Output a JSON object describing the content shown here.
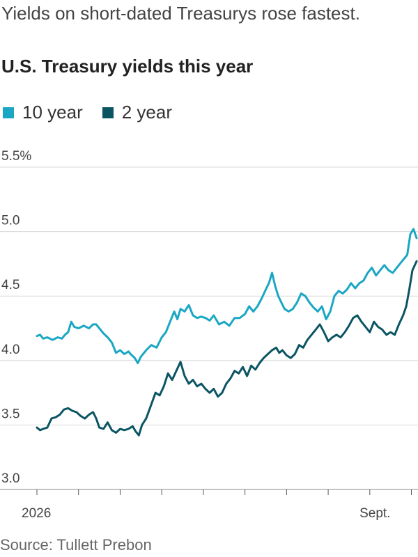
{
  "subtitle": "Yields on short-dated Treasurys rose fastest.",
  "chart_data": {
    "type": "line",
    "title": "U.S. Treasury yields this year",
    "xlabel": "",
    "ylabel": "",
    "ylim": [
      3.0,
      5.5
    ],
    "yticks": [
      3.0,
      3.5,
      4.0,
      4.5,
      5.0,
      5.5
    ],
    "ytick_labels": [
      "3.0",
      "3.5",
      "4.0",
      "4.5",
      "5.0",
      "5.5%"
    ],
    "xlim": [
      0,
      36.5
    ],
    "xtick_positions": [
      0,
      4,
      8,
      12,
      16,
      20,
      24,
      28,
      32,
      36
    ],
    "xtick_labels": [
      {
        "x": 0,
        "label": "2026"
      },
      {
        "x": 32.5,
        "label": "Sept."
      }
    ],
    "grid": true,
    "legend_placement": "top-left",
    "series": [
      {
        "name": "10 year",
        "color": "#1aa7c4",
        "points": [
          [
            0,
            4.19
          ],
          [
            0.3,
            4.2
          ],
          [
            0.6,
            4.17
          ],
          [
            1,
            4.18
          ],
          [
            1.5,
            4.16
          ],
          [
            2,
            4.18
          ],
          [
            2.4,
            4.17
          ],
          [
            2.7,
            4.2
          ],
          [
            3,
            4.22
          ],
          [
            3.3,
            4.3
          ],
          [
            3.6,
            4.26
          ],
          [
            4,
            4.25
          ],
          [
            4.5,
            4.27
          ],
          [
            5,
            4.25
          ],
          [
            5.4,
            4.28
          ],
          [
            5.7,
            4.28
          ],
          [
            6,
            4.25
          ],
          [
            6.4,
            4.21
          ],
          [
            6.8,
            4.18
          ],
          [
            7.2,
            4.14
          ],
          [
            7.6,
            4.06
          ],
          [
            8,
            4.08
          ],
          [
            8.4,
            4.05
          ],
          [
            8.8,
            4.07
          ],
          [
            9,
            4.05
          ],
          [
            9.4,
            4.02
          ],
          [
            9.7,
            3.98
          ],
          [
            10,
            4.03
          ],
          [
            10.5,
            4.08
          ],
          [
            11,
            4.12
          ],
          [
            11.5,
            4.1
          ],
          [
            12,
            4.18
          ],
          [
            12.4,
            4.22
          ],
          [
            12.8,
            4.3
          ],
          [
            13.2,
            4.38
          ],
          [
            13.5,
            4.32
          ],
          [
            13.8,
            4.4
          ],
          [
            14.2,
            4.38
          ],
          [
            14.6,
            4.43
          ],
          [
            15,
            4.35
          ],
          [
            15.4,
            4.33
          ],
          [
            15.8,
            4.34
          ],
          [
            16.2,
            4.33
          ],
          [
            16.6,
            4.31
          ],
          [
            17,
            4.35
          ],
          [
            17.5,
            4.28
          ],
          [
            18,
            4.3
          ],
          [
            18.5,
            4.27
          ],
          [
            19,
            4.33
          ],
          [
            19.5,
            4.33
          ],
          [
            20,
            4.36
          ],
          [
            20.4,
            4.42
          ],
          [
            20.8,
            4.38
          ],
          [
            21.2,
            4.42
          ],
          [
            21.6,
            4.48
          ],
          [
            22,
            4.55
          ],
          [
            22.3,
            4.6
          ],
          [
            22.6,
            4.68
          ],
          [
            22.9,
            4.58
          ],
          [
            23.2,
            4.5
          ],
          [
            23.5,
            4.45
          ],
          [
            23.8,
            4.4
          ],
          [
            24.2,
            4.38
          ],
          [
            24.6,
            4.4
          ],
          [
            25,
            4.45
          ],
          [
            25.4,
            4.52
          ],
          [
            25.8,
            4.5
          ],
          [
            26.2,
            4.45
          ],
          [
            26.6,
            4.41
          ],
          [
            27,
            4.38
          ],
          [
            27.4,
            4.42
          ],
          [
            27.8,
            4.32
          ],
          [
            28.2,
            4.38
          ],
          [
            28.6,
            4.5
          ],
          [
            29,
            4.54
          ],
          [
            29.4,
            4.52
          ],
          [
            29.8,
            4.55
          ],
          [
            30.2,
            4.6
          ],
          [
            30.6,
            4.56
          ],
          [
            31,
            4.6
          ],
          [
            31.4,
            4.62
          ],
          [
            31.8,
            4.68
          ],
          [
            32.2,
            4.72
          ],
          [
            32.6,
            4.66
          ],
          [
            33,
            4.7
          ],
          [
            33.4,
            4.74
          ],
          [
            33.8,
            4.7
          ],
          [
            34.2,
            4.68
          ],
          [
            34.6,
            4.72
          ],
          [
            35,
            4.76
          ],
          [
            35.3,
            4.79
          ],
          [
            35.6,
            4.82
          ],
          [
            35.9,
            4.98
          ],
          [
            36.2,
            5.02
          ],
          [
            36.5,
            4.95
          ]
        ]
      },
      {
        "name": "2 year",
        "color": "#0b5563",
        "points": [
          [
            0,
            3.48
          ],
          [
            0.3,
            3.46
          ],
          [
            0.6,
            3.47
          ],
          [
            1,
            3.48
          ],
          [
            1.4,
            3.55
          ],
          [
            1.8,
            3.56
          ],
          [
            2.2,
            3.58
          ],
          [
            2.6,
            3.62
          ],
          [
            3,
            3.63
          ],
          [
            3.4,
            3.61
          ],
          [
            3.8,
            3.6
          ],
          [
            4.2,
            3.57
          ],
          [
            4.6,
            3.55
          ],
          [
            5,
            3.58
          ],
          [
            5.4,
            3.6
          ],
          [
            5.7,
            3.55
          ],
          [
            6,
            3.48
          ],
          [
            6.4,
            3.47
          ],
          [
            6.8,
            3.52
          ],
          [
            7.2,
            3.46
          ],
          [
            7.6,
            3.44
          ],
          [
            8,
            3.47
          ],
          [
            8.4,
            3.46
          ],
          [
            8.8,
            3.47
          ],
          [
            9.2,
            3.49
          ],
          [
            9.5,
            3.45
          ],
          [
            9.8,
            3.42
          ],
          [
            10.1,
            3.5
          ],
          [
            10.5,
            3.55
          ],
          [
            11,
            3.66
          ],
          [
            11.4,
            3.75
          ],
          [
            11.8,
            3.73
          ],
          [
            12.2,
            3.8
          ],
          [
            12.6,
            3.9
          ],
          [
            13,
            3.85
          ],
          [
            13.4,
            3.92
          ],
          [
            13.8,
            3.99
          ],
          [
            14.2,
            3.88
          ],
          [
            14.6,
            3.82
          ],
          [
            15,
            3.85
          ],
          [
            15.4,
            3.8
          ],
          [
            15.8,
            3.82
          ],
          [
            16.2,
            3.78
          ],
          [
            16.6,
            3.75
          ],
          [
            17,
            3.78
          ],
          [
            17.4,
            3.72
          ],
          [
            17.8,
            3.75
          ],
          [
            18.2,
            3.82
          ],
          [
            18.6,
            3.86
          ],
          [
            19,
            3.92
          ],
          [
            19.4,
            3.9
          ],
          [
            19.8,
            3.95
          ],
          [
            20.2,
            3.88
          ],
          [
            20.6,
            3.96
          ],
          [
            21,
            3.93
          ],
          [
            21.4,
            3.98
          ],
          [
            21.8,
            4.02
          ],
          [
            22.2,
            4.05
          ],
          [
            22.6,
            4.08
          ],
          [
            23,
            4.1
          ],
          [
            23.3,
            4.06
          ],
          [
            23.6,
            4.08
          ],
          [
            24,
            4.04
          ],
          [
            24.4,
            4.02
          ],
          [
            24.8,
            4.05
          ],
          [
            25.2,
            4.12
          ],
          [
            25.6,
            4.1
          ],
          [
            26,
            4.16
          ],
          [
            26.4,
            4.2
          ],
          [
            26.8,
            4.24
          ],
          [
            27.2,
            4.28
          ],
          [
            27.6,
            4.22
          ],
          [
            28,
            4.15
          ],
          [
            28.4,
            4.18
          ],
          [
            28.8,
            4.2
          ],
          [
            29.2,
            4.18
          ],
          [
            29.6,
            4.22
          ],
          [
            30,
            4.27
          ],
          [
            30.4,
            4.33
          ],
          [
            30.8,
            4.35
          ],
          [
            31.2,
            4.3
          ],
          [
            31.6,
            4.26
          ],
          [
            32,
            4.22
          ],
          [
            32.4,
            4.3
          ],
          [
            32.8,
            4.26
          ],
          [
            33.2,
            4.24
          ],
          [
            33.6,
            4.2
          ],
          [
            34,
            4.22
          ],
          [
            34.4,
            4.2
          ],
          [
            34.8,
            4.28
          ],
          [
            35.2,
            4.35
          ],
          [
            35.5,
            4.42
          ],
          [
            35.8,
            4.55
          ],
          [
            36.1,
            4.7
          ],
          [
            36.5,
            4.77
          ]
        ]
      }
    ]
  },
  "source": "Source: Tullett Prebon"
}
